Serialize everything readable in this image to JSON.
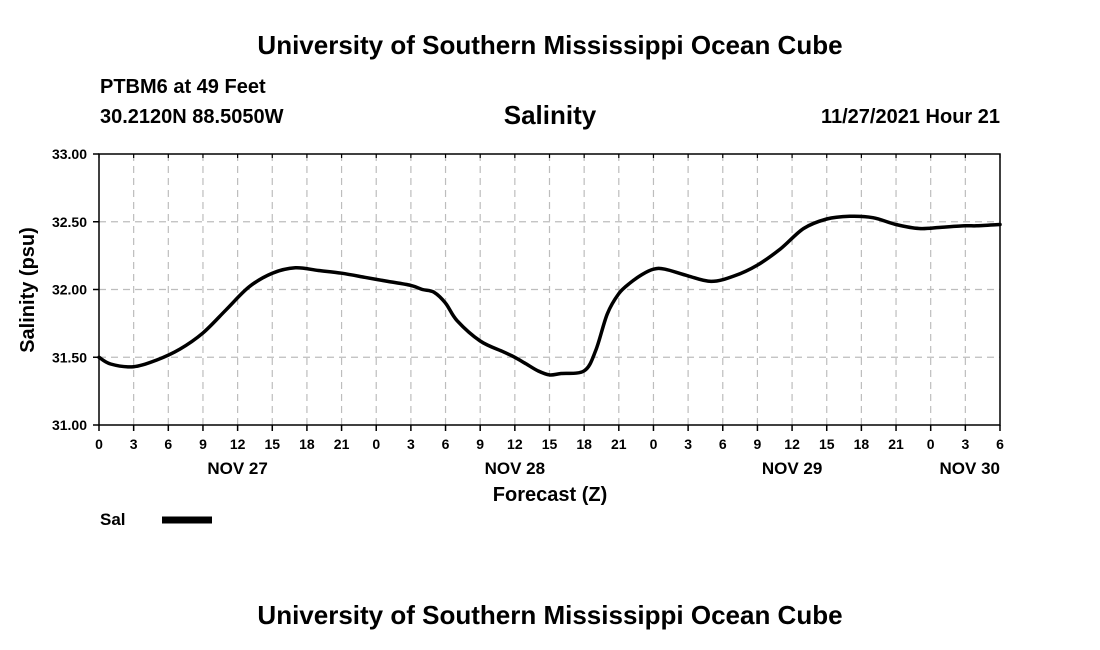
{
  "header": {
    "title": "University of Southern Mississippi Ocean Cube",
    "station": "PTBM6 at 49 Feet",
    "coords": "30.2120N  88.5050W",
    "datetime": "11/27/2021 Hour 21"
  },
  "footer": {
    "title": "University of Southern Mississippi Ocean Cube"
  },
  "chart_data": {
    "type": "line",
    "title": "Salinity",
    "xlabel": "Forecast (Z)",
    "ylabel": "Salinity (psu)",
    "ylim": [
      31.0,
      33.0
    ],
    "yticks": [
      "31.00",
      "31.50",
      "32.00",
      "32.50",
      "33.00"
    ],
    "xlim_hours": [
      0,
      78
    ],
    "xtick_labels": [
      "0",
      "3",
      "6",
      "9",
      "12",
      "15",
      "18",
      "21",
      "0",
      "3",
      "6",
      "9",
      "12",
      "15",
      "18",
      "21",
      "0",
      "3",
      "6",
      "9",
      "12",
      "15",
      "18",
      "21",
      "0",
      "3",
      "6"
    ],
    "day_labels": [
      {
        "hour": 12,
        "label": "NOV 27"
      },
      {
        "hour": 36,
        "label": "NOV 28"
      },
      {
        "hour": 60,
        "label": "NOV 29"
      },
      {
        "hour": 78,
        "label": "NOV 30"
      }
    ],
    "grid": true,
    "line_color": "#000000",
    "series": [
      {
        "name": "Sal",
        "x": [
          0,
          1,
          3,
          5,
          7,
          9,
          11,
          13,
          15,
          17,
          19,
          21,
          23,
          25,
          27,
          28,
          29,
          30,
          31,
          33,
          35,
          36,
          37,
          38,
          39,
          40,
          42,
          43,
          44,
          45,
          46,
          47,
          48,
          49,
          51,
          53,
          55,
          57,
          59,
          61,
          63,
          65,
          67,
          69,
          71,
          73,
          75,
          76,
          78
        ],
        "y": [
          31.5,
          31.45,
          31.43,
          31.48,
          31.56,
          31.68,
          31.85,
          32.02,
          32.12,
          32.16,
          32.14,
          32.12,
          32.09,
          32.06,
          32.03,
          32.0,
          31.98,
          31.9,
          31.77,
          31.62,
          31.54,
          31.5,
          31.45,
          31.4,
          31.37,
          31.38,
          31.4,
          31.55,
          31.82,
          31.97,
          32.05,
          32.11,
          32.15,
          32.15,
          32.1,
          32.06,
          32.1,
          32.18,
          32.3,
          32.45,
          32.52,
          32.54,
          32.53,
          32.48,
          32.45,
          32.46,
          32.47,
          32.47,
          32.48
        ]
      }
    ],
    "legend": {
      "label": "Sal",
      "position": "bottom-left"
    }
  }
}
